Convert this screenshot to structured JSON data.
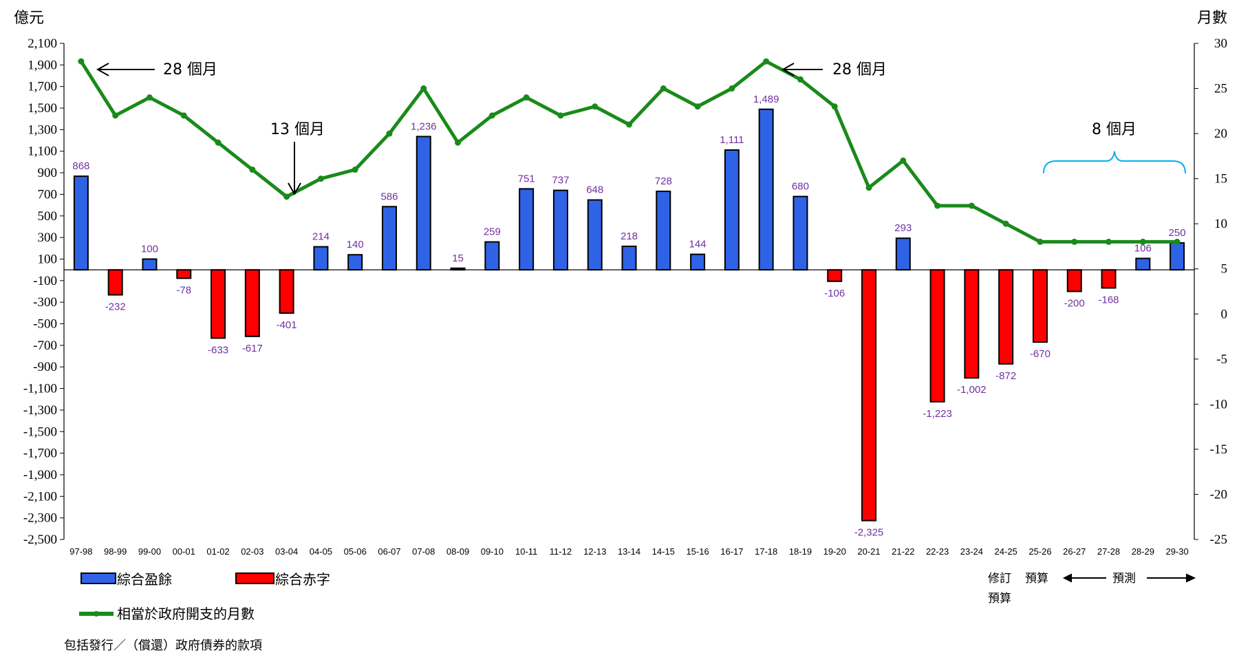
{
  "chart_data": {
    "type": "bar",
    "left_axis_title": "億元",
    "right_axis_title": "月數",
    "categories": [
      "97-98",
      "98-99",
      "99-00",
      "00-01",
      "01-02",
      "02-03",
      "03-04",
      "04-05",
      "05-06",
      "06-07",
      "07-08",
      "08-09",
      "09-10",
      "10-11",
      "11-12",
      "12-13",
      "13-14",
      "14-15",
      "15-16",
      "16-17",
      "17-18",
      "18-19",
      "19-20",
      "20-21",
      "21-22",
      "22-23",
      "23-24",
      "24-25",
      "25-26",
      "26-27",
      "27-28",
      "28-29",
      "29-30"
    ],
    "values": [
      868,
      -232,
      100,
      -78,
      -633,
      -617,
      -401,
      214,
      140,
      586,
      1236,
      15,
      259,
      751,
      737,
      648,
      218,
      728,
      144,
      1111,
      1489,
      680,
      -106,
      -2325,
      293,
      -1223,
      -1002,
      -872,
      -670,
      -200,
      -168,
      106,
      250
    ],
    "value_labels": [
      "868",
      "-232",
      "100",
      "-78",
      "-633",
      "-617",
      "-401",
      "214",
      "140",
      "586",
      "1,236",
      "15",
      "259",
      "751",
      "737",
      "648",
      "218",
      "728",
      "144",
      "1,111",
      "1,489",
      "680",
      "-106",
      "-2,325",
      "293",
      "-1,223",
      "-1,002",
      "-872",
      "-670",
      "-200",
      "-168",
      "106",
      "250"
    ],
    "months": [
      28,
      22,
      24,
      22,
      19,
      16,
      13,
      15,
      16,
      20,
      25,
      19,
      22,
      24,
      22,
      23,
      21,
      25,
      23,
      25,
      28,
      26,
      23,
      14,
      17,
      12,
      12,
      10,
      8,
      8,
      8,
      8,
      8
    ],
    "ylim_left": [
      -2500,
      2100
    ],
    "left_ticks": [
      "2,100",
      "1,900",
      "1,700",
      "1,500",
      "1,300",
      "1,100",
      "900",
      "700",
      "500",
      "300",
      "100",
      "-100",
      "-300",
      "-500",
      "-700",
      "-900",
      "-1,100",
      "-1,300",
      "-1,500",
      "-1,700",
      "-1,900",
      "-2,100",
      "-2,300",
      "-2,500"
    ],
    "left_tick_values": [
      2100,
      1900,
      1700,
      1500,
      1300,
      1100,
      900,
      700,
      500,
      300,
      100,
      -100,
      -300,
      -500,
      -700,
      -900,
      -1100,
      -1300,
      -1500,
      -1700,
      -1900,
      -2100,
      -2300,
      -2500
    ],
    "ylim_right": [
      -25,
      30
    ],
    "right_ticks": [
      "30",
      "25",
      "20",
      "15",
      "10",
      "5",
      "0",
      "-5",
      "-10",
      "-15",
      "-20",
      "-25"
    ],
    "right_tick_values": [
      30,
      25,
      20,
      15,
      10,
      5,
      0,
      -5,
      -10,
      -15,
      -20,
      -25
    ],
    "colors": {
      "surplus": "#2f63e6",
      "deficit": "#ff0000",
      "line": "#1a8a1a",
      "value_label": "#7030a0",
      "brace": "#00b0f0"
    },
    "annotations": {
      "peak1": "28 個月",
      "trough": "13 個月",
      "peak2": "28 個月",
      "end": "8 個月"
    },
    "legend": {
      "surplus": "綜合盈餘",
      "deficit": "綜合赤字",
      "line": "相當於政府開支的月數"
    },
    "footnote": "包括發行／（償還）政府債券的款項",
    "period_labels": {
      "revised_1": "修訂",
      "budget_1": "預算",
      "revised_2": "預算",
      "forecast": "預測"
    }
  }
}
